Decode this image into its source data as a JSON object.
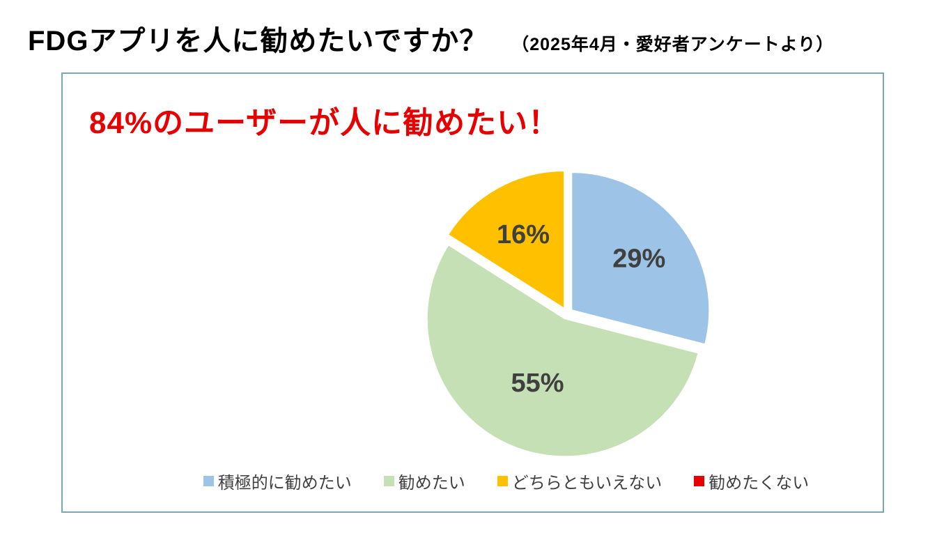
{
  "page": {
    "title_main": "FDGアプリを人に勧めたいですか？",
    "title_note": "（2025年4月・愛好者アンケートより）"
  },
  "panel": {
    "border_color": "#7aa6ae"
  },
  "chart_data": {
    "type": "pie",
    "annotation": "84%のユーザーが人に勧めたい！",
    "annotation_color": "#e60000",
    "categories": [
      "積極的に勧めたい",
      "勧めたい",
      "どちらともいえない",
      "勧めたくない"
    ],
    "values": [
      29,
      55,
      16,
      0
    ],
    "data_labels": [
      "29%",
      "55%",
      "16%",
      ""
    ],
    "colors": [
      "#9dc3e6",
      "#c5e0b4",
      "#ffc000",
      "#e60000"
    ],
    "start_angle_deg": 0,
    "direction": "clockwise",
    "exploded": true,
    "label_color": "#404040",
    "legend_position": "bottom",
    "legend_text_color": "#404040"
  }
}
